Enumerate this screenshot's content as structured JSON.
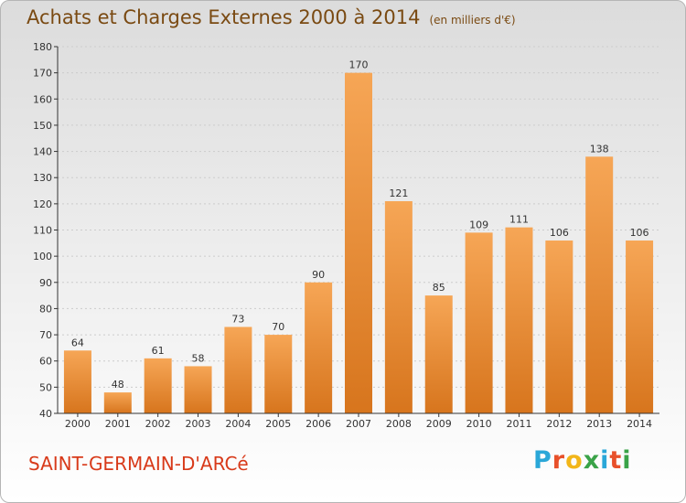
{
  "title": "Achats et Charges Externes 2000 à 2014",
  "subtitle": "(en milliers d'€)",
  "commune": "SAINT-GERMAIN-D'ARCé",
  "logo": {
    "text": "Proxiti",
    "letter_colors": [
      "#2aa7d8",
      "#e8502a",
      "#f2b619",
      "#3aa348",
      "#2aa7d8",
      "#e8502a",
      "#3aa348"
    ]
  },
  "colors": {
    "bar_top": "#f6a656",
    "bar_bottom": "#d7751d",
    "text": "#333333",
    "axis": "#333333",
    "grid": "#cccccc"
  },
  "chart_data": {
    "type": "bar",
    "title": "Achats et Charges Externes 2000 à 2014",
    "subtitle": "(en milliers d'€)",
    "categories": [
      "2000",
      "2001",
      "2002",
      "2003",
      "2004",
      "2005",
      "2006",
      "2007",
      "2008",
      "2009",
      "2010",
      "2011",
      "2012",
      "2013",
      "2014"
    ],
    "values": [
      64,
      48,
      61,
      58,
      73,
      70,
      90,
      170,
      121,
      85,
      109,
      111,
      106,
      138,
      106
    ],
    "ylim": [
      40,
      180
    ],
    "yticks": [
      40,
      50,
      60,
      70,
      80,
      90,
      100,
      110,
      120,
      130,
      140,
      150,
      160,
      170,
      180
    ],
    "grid": true,
    "data_labels": true
  }
}
